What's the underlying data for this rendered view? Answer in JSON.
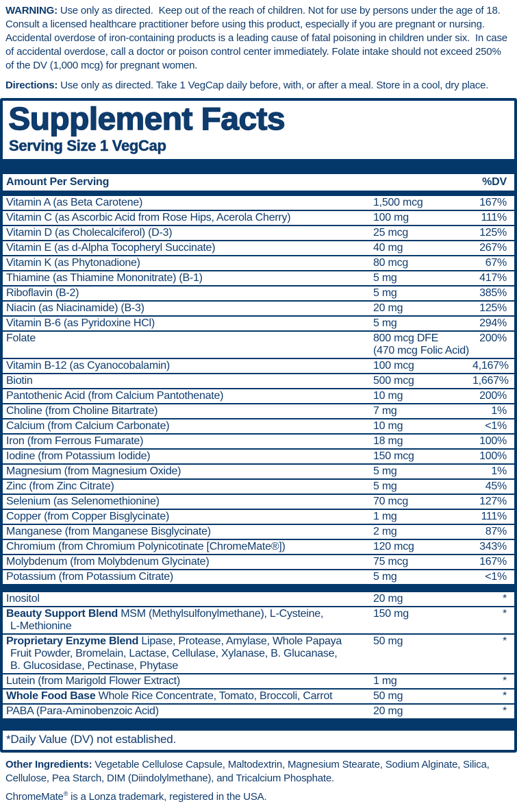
{
  "colors": {
    "navy_bar": "#04386a",
    "navy_text": "#103c6d",
    "background": "#ffffff"
  },
  "top": {
    "warning_label": "WARNING:",
    "warning_text": " Use only as directed.  Keep out of the reach of children. Not for use by persons under the age of 18.  Consult a licensed healthcare practitioner before using this product, especially if you are pregnant or nursing.  Accidental overdose of iron-containing products is a leading cause of fatal poisoning in children under six.  In case of accidental overdose, call a doctor or poison control center immediately. Folate intake should not exceed 250% of the DV (1,000 mcg) for pregnant women.",
    "directions_label": "Directions:",
    "directions_text": " Use only as directed. Take 1 VegCap daily before, with, or after a meal. Store in a cool, dry place."
  },
  "facts": {
    "title": "Supplement Facts",
    "serving_size": "Serving Size 1 VegCap",
    "amount_header": "Amount Per Serving",
    "dv_header": "%DV",
    "main_rows": [
      {
        "name": "Vitamin A (as Beta Carotene)",
        "amount": "1,500 mcg",
        "dv": "167%"
      },
      {
        "name": "Vitamin C (as Ascorbic Acid from Rose Hips, Acerola Cherry)",
        "amount": "100 mg",
        "dv": "111%"
      },
      {
        "name": "Vitamin D (as Cholecalciferol) (D-3)",
        "amount": "25 mcg",
        "dv": "125%"
      },
      {
        "name": "Vitamin E (as d-Alpha Tocopheryl Succinate)",
        "amount": "40 mg",
        "dv": "267%"
      },
      {
        "name": "Vitamin K (as Phytonadione)",
        "amount": "80 mcg",
        "dv": "67%"
      },
      {
        "name": "Thiamine (as Thiamine Mononitrate) (B-1)",
        "amount": "5 mg",
        "dv": "417%"
      },
      {
        "name": "Riboflavin (B-2)",
        "amount": "5 mg",
        "dv": "385%"
      },
      {
        "name": "Niacin (as Niacinamide) (B-3)",
        "amount": "20 mg",
        "dv": "125%"
      },
      {
        "name": "Vitamin B-6 (as Pyridoxine HCl)",
        "amount": "5 mg",
        "dv": "294%"
      },
      {
        "name": "Folate",
        "amount": "800 mcg DFE",
        "amount2": "(470 mcg Folic Acid)",
        "dv": "200%"
      },
      {
        "name": "Vitamin B-12 (as Cyanocobalamin)",
        "amount": "100 mcg",
        "dv": "4,167%"
      },
      {
        "name": "Biotin",
        "amount": "500 mcg",
        "dv": "1,667%"
      },
      {
        "name": "Pantothenic Acid (from Calcium Pantothenate)",
        "amount": "10 mg",
        "dv": "200%"
      },
      {
        "name": "Choline (from Choline Bitartrate)",
        "amount": "7 mg",
        "dv": "1%"
      },
      {
        "name": "Calcium (from Calcium Carbonate)",
        "amount": "10 mg",
        "dv": "<1%"
      },
      {
        "name": "Iron (from Ferrous Fumarate)",
        "amount": "18 mg",
        "dv": "100%"
      },
      {
        "name": "Iodine (from Potassium Iodide)",
        "amount": "150 mcg",
        "dv": "100%"
      },
      {
        "name": "Magnesium (from Magnesium Oxide)",
        "amount": "5 mg",
        "dv": "1%"
      },
      {
        "name": "Zinc (from Zinc Citrate)",
        "amount": "5 mg",
        "dv": "45%"
      },
      {
        "name": "Selenium (as Selenomethionine)",
        "amount": "70 mcg",
        "dv": "127%"
      },
      {
        "name": "Copper (from Copper Bisglycinate)",
        "amount": "1 mg",
        "dv": "111%"
      },
      {
        "name": "Manganese (from Manganese Bisglycinate)",
        "amount": "2 mg",
        "dv": "87%"
      },
      {
        "name": "Chromium (from Chromium Polynicotinate [ChromeMate®])",
        "amount": "120 mcg",
        "dv": "343%"
      },
      {
        "name": "Molybdenum (from Molybdenum Glycinate)",
        "amount": "75 mcg",
        "dv": "167%"
      },
      {
        "name": "Potassium (from Potassium Citrate)",
        "amount": "5 mg",
        "dv": "<1%"
      }
    ],
    "other_rows": [
      {
        "name": "Inositol",
        "amount": "20 mg",
        "dv": "*"
      },
      {
        "bold": "Beauty Support Blend",
        "name": "MSM (Methylsulfonylmethane), L-Cysteine,",
        "cont": [
          "L-Methionine"
        ],
        "amount": "150 mg",
        "dv": "*"
      },
      {
        "bold": "Proprietary Enzyme Blend",
        "name": "Lipase, Protease, Amylase, Whole Papaya",
        "cont": [
          "Fruit Powder, Bromelain, Lactase, Cellulase, Xylanase, B. Glucanase,",
          "B. Glucosidase, Pectinase, Phytase"
        ],
        "amount": "50 mg",
        "dv": "*"
      },
      {
        "name": "Lutein (from Marigold Flower Extract)",
        "amount": "1 mg",
        "dv": "*"
      },
      {
        "bold": "Whole Food Base",
        "name": "Whole Rice Concentrate, Tomato, Broccoli, Carrot",
        "amount": "50 mg",
        "dv": "*"
      },
      {
        "name": "PABA (Para-Aminobenzoic Acid)",
        "amount": "20 mg",
        "dv": "*"
      }
    ],
    "footnote": "*Daily Value (DV) not established."
  },
  "footer": {
    "other_label": "Other Ingredients:",
    "other_text": " Vegetable Cellulose Capsule, Maltodextrin, Magnesium Stearate, Sodium Alginate, Silica, Cellulose, Pea Starch, DIM (Diindolylmethane), and Tricalcium Phosphate.",
    "trademark_pre": "ChromeMate",
    "trademark_sup": "®",
    "trademark_post": " is a Lonza trademark, registered in the USA."
  }
}
